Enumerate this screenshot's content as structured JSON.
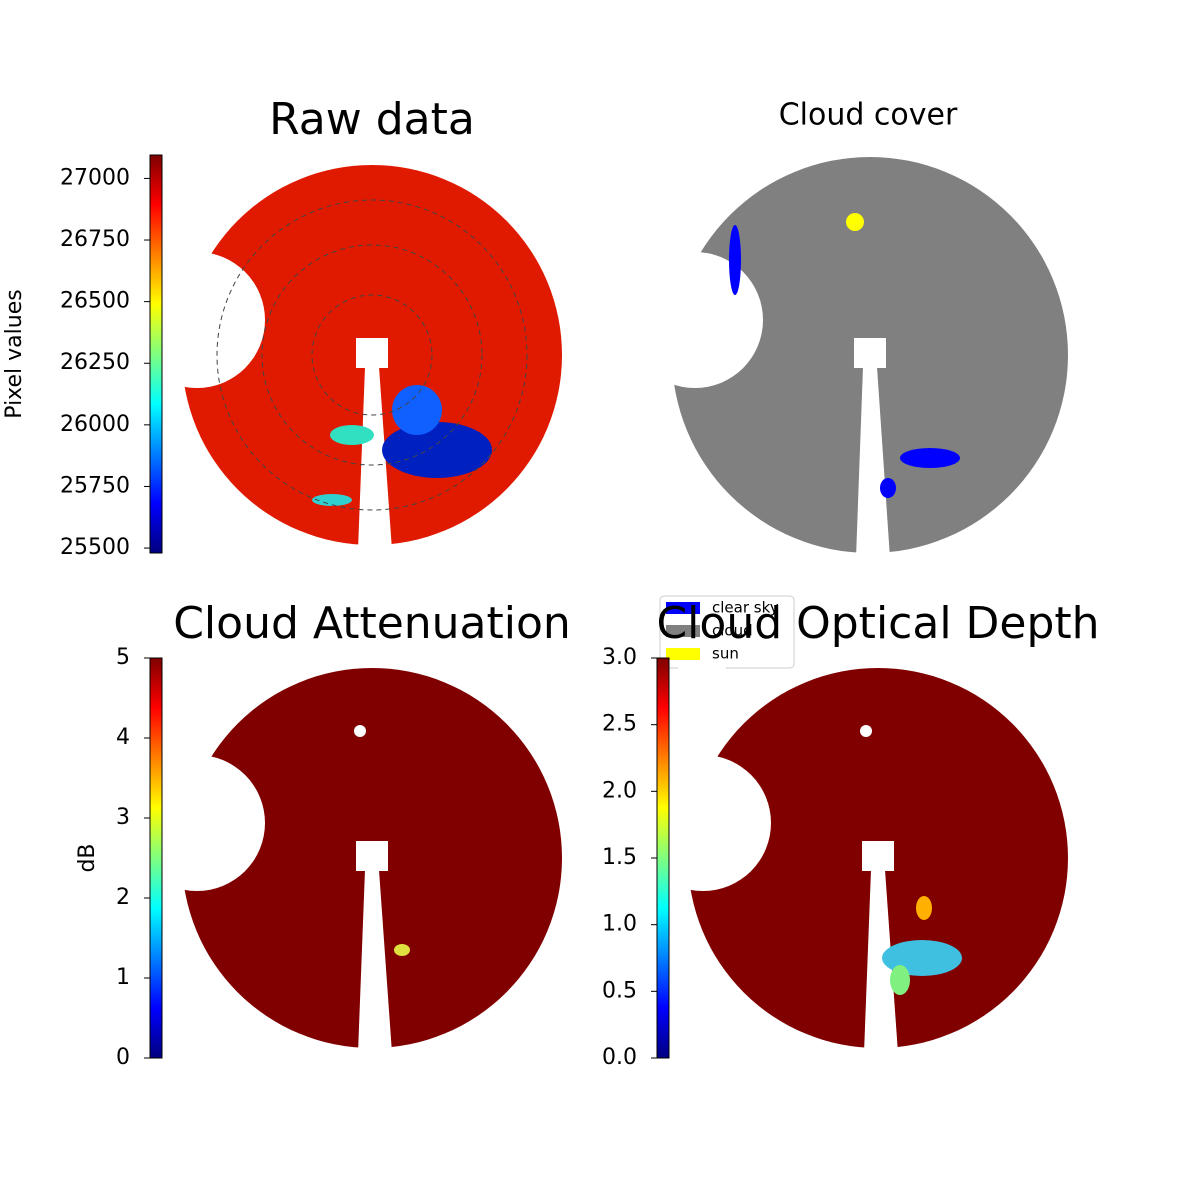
{
  "chart_data": [
    {
      "type": "image",
      "title": "Raw data",
      "colorbar_label": "Pixel values",
      "colormap": "jet",
      "ylim": [
        25480,
        27095
      ],
      "yticks": [
        25500,
        25750,
        26000,
        26250,
        26500,
        26750,
        27000
      ]
    },
    {
      "type": "image",
      "title": "Cloud cover",
      "legend": [
        {
          "name": "clear sky",
          "color": "#0000ff"
        },
        {
          "name": "cloud",
          "color": "#808080"
        },
        {
          "name": "sun",
          "color": "#ffff00"
        }
      ]
    },
    {
      "type": "image",
      "title": "Cloud Attenuation",
      "colorbar_label": "dB",
      "colormap": "jet",
      "ylim": [
        0,
        5
      ],
      "yticks": [
        0,
        1,
        2,
        3,
        4,
        5
      ]
    },
    {
      "type": "image",
      "title": "Cloud Optical Depth",
      "colormap": "jet",
      "ylim": [
        0,
        3
      ],
      "yticks": [
        {
          "value": 0,
          "label": "0.0"
        },
        {
          "value": 0.5,
          "label": "0.5"
        },
        {
          "value": 1,
          "label": "1.0"
        },
        {
          "value": 1.5,
          "label": "1.5"
        },
        {
          "value": 2,
          "label": "2.0"
        },
        {
          "value": 2.5,
          "label": "2.5"
        },
        {
          "value": 3,
          "label": "3.0"
        }
      ]
    }
  ]
}
